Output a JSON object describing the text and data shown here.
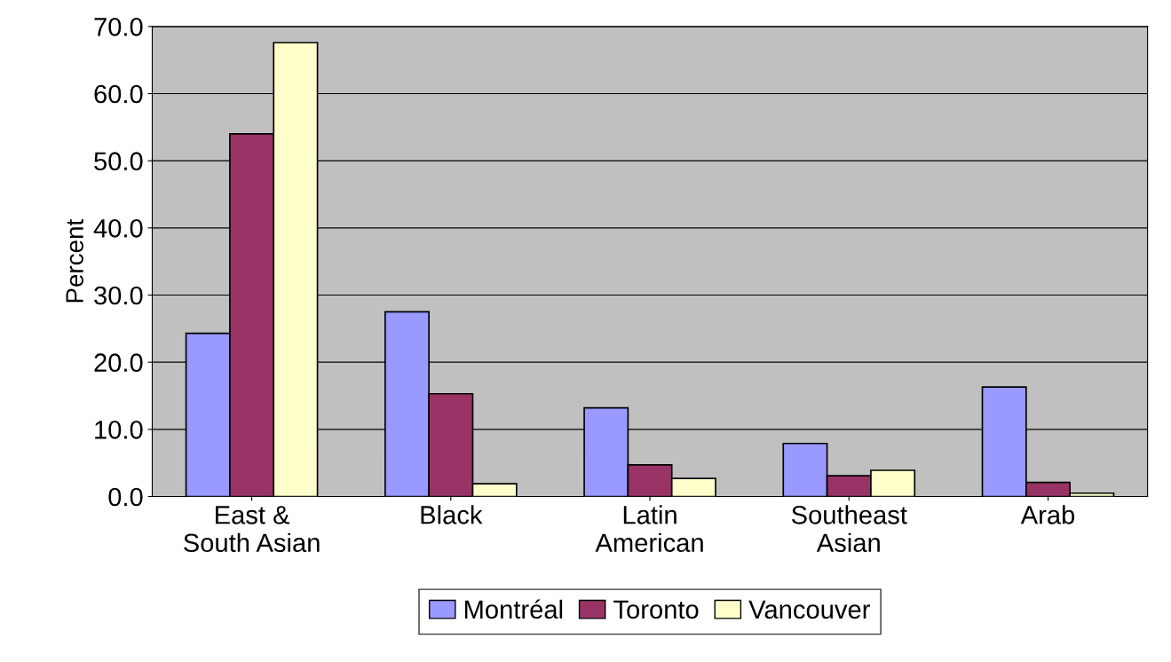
{
  "chart_data": {
    "type": "bar",
    "ylabel": "Percent",
    "categories": [
      "East &\nSouth Asian",
      "Black",
      "Latin\nAmerican",
      "Southeast\nAsian",
      "Arab"
    ],
    "series": [
      {
        "name": "Montréal",
        "color": "#9999ff",
        "values": [
          24.3,
          27.5,
          13.2,
          7.9,
          16.3
        ]
      },
      {
        "name": "Toronto",
        "color": "#993366",
        "values": [
          54.0,
          15.3,
          4.7,
          3.1,
          2.1
        ]
      },
      {
        "name": "Vancouver",
        "color": "#ffffcc",
        "values": [
          67.6,
          1.9,
          2.7,
          3.9,
          0.5
        ]
      }
    ],
    "ylim": [
      0,
      70
    ],
    "yticks": [
      {
        "value": 0,
        "label": "0.0"
      },
      {
        "value": 10,
        "label": "10.0"
      },
      {
        "value": 20,
        "label": "20.0"
      },
      {
        "value": 30,
        "label": "30.0"
      },
      {
        "value": 40,
        "label": "40.0"
      },
      {
        "value": 50,
        "label": "50.0"
      },
      {
        "value": 60,
        "label": "60.0"
      },
      {
        "value": 70,
        "label": "70.0"
      }
    ],
    "grid": "y",
    "legend": "bottom"
  }
}
